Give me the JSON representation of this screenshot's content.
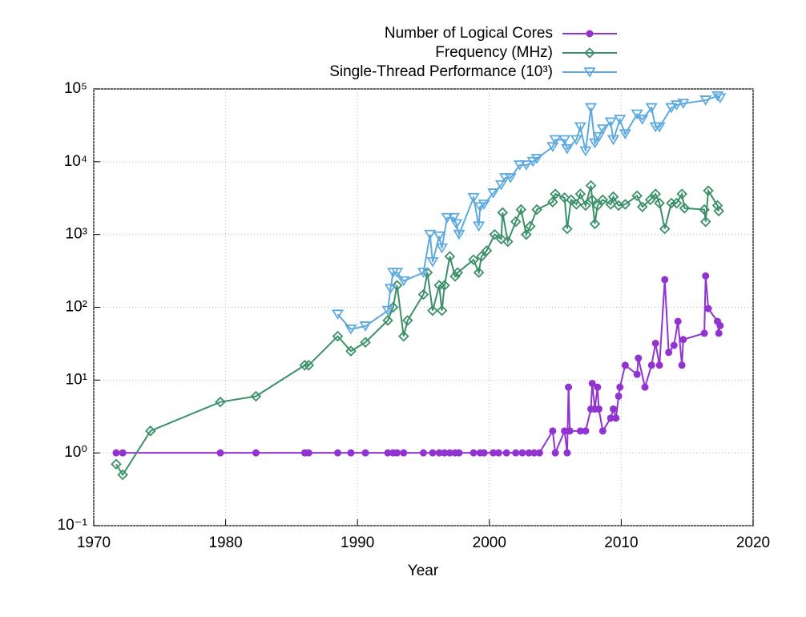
{
  "chart_data": {
    "type": "line",
    "log_y": true,
    "grid": true,
    "legend": "top-right",
    "xlabel": "Year",
    "xlim": [
      1970,
      2020
    ],
    "xticks": [
      1970,
      1980,
      1990,
      2000,
      2010,
      2020
    ],
    "ylim": [
      0.1,
      100000
    ],
    "yticks": [
      {
        "value": 0.1,
        "label": "10⁻¹"
      },
      {
        "value": 1,
        "label": "10⁰"
      },
      {
        "value": 10,
        "label": "10¹"
      },
      {
        "value": 100,
        "label": "10²"
      },
      {
        "value": 1000,
        "label": "10³"
      },
      {
        "value": 10000,
        "label": "10⁴"
      },
      {
        "value": 100000,
        "label": "10⁵"
      }
    ],
    "series": [
      {
        "name": "Number of Logical Cores",
        "color": "#9233d1",
        "marker": "circle",
        "x": [
          1971.7,
          1972.2,
          1979.6,
          1982.3,
          1986,
          1986.3,
          1988.5,
          1989.5,
          1990.6,
          1992.3,
          1992.7,
          1993,
          1993.5,
          1995,
          1995.7,
          1996.2,
          1996.6,
          1997,
          1997.4,
          1997.7,
          1998.8,
          1999.3,
          1999.6,
          2000.3,
          2000.7,
          2001.3,
          2002,
          2002.5,
          2003,
          2003.4,
          2003.8,
          2004.8,
          2005,
          2005.7,
          2005.9,
          2006,
          2006.1,
          2006.9,
          2007.3,
          2007.7,
          2007.8,
          2008,
          2008.2,
          2008.3,
          2008.6,
          2009.2,
          2009.4,
          2009.6,
          2009.8,
          2009.9,
          2010.3,
          2011.2,
          2011.3,
          2011.8,
          2012.3,
          2012.6,
          2012.9,
          2013.3,
          2013.6,
          2014,
          2014.3,
          2014.6,
          2014.7,
          2016.3,
          2016.4,
          2016.6,
          2017.3,
          2017.4,
          2017.5
        ],
        "values": [
          1,
          1,
          1,
          1,
          1,
          1,
          1,
          1,
          1,
          1,
          1,
          1,
          1,
          1,
          1,
          1,
          1,
          1,
          1,
          1,
          1,
          1,
          1,
          1,
          1,
          1,
          1,
          1,
          1,
          1,
          1,
          2,
          1,
          2,
          1,
          8,
          2,
          2,
          2,
          4,
          9,
          4,
          8,
          4,
          2,
          3,
          4,
          3,
          6,
          8,
          16,
          12,
          20,
          8,
          16,
          32,
          16,
          240,
          24,
          30,
          64,
          16,
          36,
          44,
          270,
          96,
          64,
          44,
          56
        ]
      },
      {
        "name": "Frequency (MHz)",
        "color": "#3a9068",
        "marker": "diamond",
        "x": [
          1971.7,
          1972.2,
          1974.3,
          1979.6,
          1982.3,
          1986,
          1986.3,
          1988.5,
          1989.5,
          1990.6,
          1992.3,
          1992.7,
          1993,
          1993.5,
          1993.8,
          1995,
          1995.3,
          1995.7,
          1996.2,
          1996.4,
          1996.6,
          1997,
          1997.4,
          1997.6,
          1998.8,
          1999.2,
          1999.4,
          1999.8,
          2000.4,
          2000.9,
          2001,
          2001.4,
          2002,
          2002.4,
          2002.8,
          2003.1,
          2003.6,
          2004.8,
          2005,
          2005.7,
          2005.9,
          2006.2,
          2006.6,
          2006.9,
          2007.3,
          2007.7,
          2007.8,
          2008,
          2008.2,
          2008.6,
          2009.2,
          2009.4,
          2009.8,
          2010.3,
          2011.2,
          2011.6,
          2012.2,
          2012.6,
          2012.9,
          2013.3,
          2013.8,
          2014.2,
          2014.6,
          2014.8,
          2016.3,
          2016.4,
          2016.6,
          2017.3,
          2017.4
        ],
        "values": [
          0.7,
          0.5,
          2,
          5,
          6,
          16,
          16,
          40,
          25,
          33,
          66,
          100,
          200,
          40,
          66,
          150,
          300,
          90,
          200,
          90,
          200,
          500,
          266,
          300,
          450,
          300,
          500,
          600,
          1000,
          866,
          2000,
          800,
          1500,
          2200,
          1000,
          1300,
          2200,
          2800,
          3600,
          3200,
          1200,
          3000,
          2600,
          3600,
          2500,
          4700,
          3000,
          1400,
          2500,
          3000,
          2600,
          3300,
          2500,
          2600,
          3400,
          2400,
          3000,
          3600,
          2700,
          1200,
          2700,
          2700,
          3600,
          2300,
          2200,
          1500,
          4000,
          2500,
          2100
        ]
      },
      {
        "name": "Single-Thread Performance (10³)",
        "color": "#5eaadf",
        "marker": "triangle-down",
        "x": [
          1988.5,
          1989.5,
          1990.6,
          1992.3,
          1992.5,
          1992.7,
          1993,
          1993.5,
          1995,
          1995.5,
          1995.7,
          1996.2,
          1996.4,
          1996.8,
          1997.3,
          1997.5,
          1997.7,
          1998.8,
          1999.2,
          1999.3,
          1999.6,
          2000.3,
          2000.9,
          2001.2,
          2001.6,
          2002.3,
          2002.8,
          2003.3,
          2003.6,
          2004.8,
          2005,
          2005.7,
          2005.9,
          2006.6,
          2006.9,
          2007.3,
          2007.7,
          2008,
          2008.3,
          2008.6,
          2009.2,
          2009.4,
          2009.9,
          2010.3,
          2011.2,
          2011.6,
          2012.3,
          2012.6,
          2012.9,
          2013.8,
          2014.2,
          2014.7,
          2016.4,
          2017.3,
          2017.5
        ],
        "values": [
          80,
          50,
          55,
          90,
          180,
          300,
          300,
          230,
          300,
          1000,
          420,
          950,
          650,
          1700,
          1700,
          1400,
          1000,
          3200,
          1300,
          2400,
          2600,
          3700,
          4800,
          6000,
          6000,
          9000,
          9000,
          10000,
          11000,
          16000,
          20000,
          20000,
          15000,
          20000,
          30000,
          14000,
          55000,
          18000,
          22000,
          28000,
          35000,
          20000,
          38000,
          24000,
          45000,
          38000,
          55000,
          30000,
          30000,
          55000,
          60000,
          63000,
          70000,
          80000,
          75000
        ]
      }
    ]
  }
}
